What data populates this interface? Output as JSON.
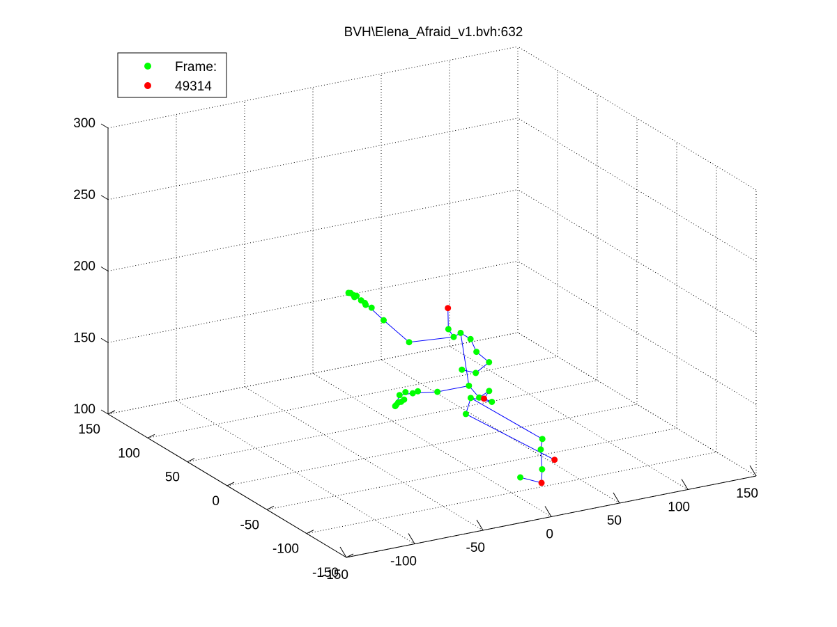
{
  "chart_data": {
    "type": "scatter",
    "projection": "3d",
    "title": "BVH\\Elena_Afraid_v1.bvh:632",
    "xlim": [
      -150,
      150
    ],
    "ylim": [
      -150,
      150
    ],
    "zlim": [
      100,
      300
    ],
    "x_ticks": [
      "-150",
      "-100",
      "-50",
      "0",
      "50",
      "100",
      "150"
    ],
    "y_ticks": [
      "-150",
      "-100",
      "-50",
      "0",
      "50",
      "100",
      "150"
    ],
    "z_ticks": [
      "100",
      "150",
      "200",
      "250",
      "300"
    ],
    "grid": true,
    "box": false,
    "legend": {
      "placement": "top-left",
      "entries": [
        {
          "label": "Frame:",
          "color": "#00ff00"
        },
        {
          "label": "49314",
          "color": "#ff0000"
        }
      ]
    },
    "colors": {
      "joint": "#00ff00",
      "end_effector": "#ff0000",
      "bone": "#0000ff",
      "grid": "#000000"
    },
    "series": [
      {
        "name": "Frame:",
        "color": "#00ff00",
        "points": [
          [
            10,
            -10,
            177
          ],
          [
            11,
            -17,
            182
          ],
          [
            9,
            -5,
            181
          ],
          [
            20,
            -14,
            175
          ],
          [
            22,
            -18,
            167
          ],
          [
            26,
            -27,
            162
          ],
          [
            18,
            -24,
            155
          ],
          [
            16,
            -10,
            153
          ],
          [
            13,
            -24,
            147
          ],
          [
            17,
            -30,
            140
          ],
          [
            22,
            -34,
            145
          ],
          [
            24,
            -34,
            137
          ],
          [
            12,
            -28,
            140
          ],
          [
            9,
            -27,
            129
          ],
          [
            -18,
            -2,
            176
          ],
          [
            -25,
            18,
            186
          ],
          [
            -30,
            32,
            193
          ],
          [
            -32,
            40,
            197
          ],
          [
            -33,
            42,
            197
          ],
          [
            -34,
            44,
            198
          ],
          [
            -35,
            45,
            198
          ],
          [
            -33,
            41,
            196
          ],
          [
            -31,
            36,
            195
          ],
          [
            -30,
            33,
            194
          ],
          [
            -28,
            28,
            192
          ],
          [
            -6,
            -17,
            144
          ],
          [
            -16,
            6,
            138
          ],
          [
            -18,
            10,
            135
          ],
          [
            -17,
            6,
            133
          ],
          [
            -18,
            8,
            131
          ],
          [
            -19,
            10,
            130
          ],
          [
            -20,
            11,
            128
          ],
          [
            -20,
            12,
            127
          ],
          [
            -13,
            2,
            138
          ],
          [
            -11,
            -1,
            140
          ],
          [
            40,
            -70,
            120
          ],
          [
            40,
            -68,
            112
          ],
          [
            41,
            -68,
            98
          ],
          [
            32,
            -56,
            90
          ]
        ]
      },
      {
        "name": "49314",
        "color": "#ff0000",
        "points": [
          [
            11,
            -1,
            194
          ],
          [
            20,
            -31,
            139
          ],
          [
            46,
            -75,
            106
          ],
          [
            40,
            -69,
            89
          ]
        ]
      }
    ],
    "bones": [
      [
        [
          16,
          -10,
          153
        ],
        [
          18,
          -24,
          155
        ],
        [
          26,
          -27,
          162
        ],
        [
          22,
          -18,
          167
        ],
        [
          20,
          -14,
          175
        ],
        [
          11,
          -17,
          182
        ],
        [
          10,
          -10,
          177
        ],
        [
          9,
          -5,
          181
        ],
        [
          11,
          -1,
          194
        ]
      ],
      [
        [
          10,
          -10,
          177
        ],
        [
          -18,
          -2,
          176
        ],
        [
          -25,
          18,
          186
        ],
        [
          -30,
          33,
          194
        ],
        [
          -34,
          44,
          198
        ]
      ],
      [
        [
          11,
          -17,
          182
        ],
        [
          13,
          -24,
          147
        ],
        [
          17,
          -30,
          140
        ],
        [
          22,
          -34,
          145
        ],
        [
          20,
          -31,
          139
        ],
        [
          24,
          -34,
          137
        ],
        [
          12,
          -28,
          140
        ],
        [
          9,
          -27,
          129
        ],
        [
          46,
          -75,
          106
        ]
      ],
      [
        [
          13,
          -24,
          147
        ],
        [
          -6,
          -17,
          144
        ],
        [
          -13,
          2,
          138
        ],
        [
          -18,
          10,
          135
        ],
        [
          -20,
          12,
          127
        ]
      ],
      [
        [
          12,
          -28,
          140
        ],
        [
          40,
          -70,
          120
        ],
        [
          40,
          -68,
          112
        ],
        [
          41,
          -68,
          98
        ],
        [
          40,
          -69,
          89
        ],
        [
          32,
          -56,
          90
        ]
      ]
    ]
  }
}
